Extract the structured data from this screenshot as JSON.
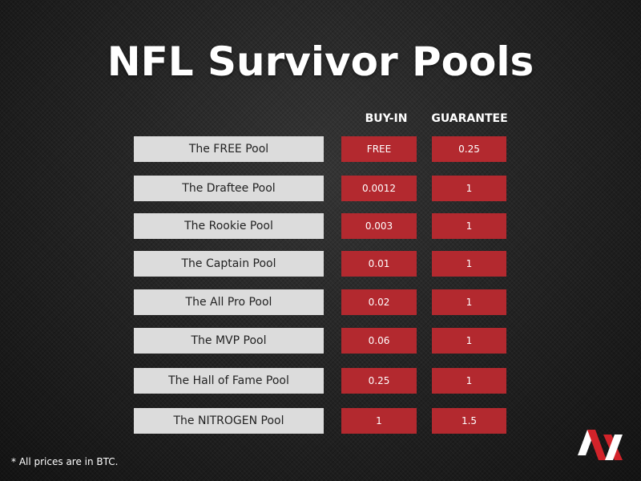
{
  "title": "NFL Survivor Pools",
  "columns": {
    "buyin": "BUY-IN",
    "guarantee": "GUARANTEE"
  },
  "pools": [
    {
      "name": "The FREE Pool",
      "buyin": "FREE",
      "guarantee": "0.25"
    },
    {
      "name": "The Draftee Pool",
      "buyin": "0.0012",
      "guarantee": "1"
    },
    {
      "name": "The Rookie Pool",
      "buyin": "0.003",
      "guarantee": "1"
    },
    {
      "name": "The Captain Pool",
      "buyin": "0.01",
      "guarantee": "1"
    },
    {
      "name": "The All Pro Pool",
      "buyin": "0.02",
      "guarantee": "1"
    },
    {
      "name": "The MVP Pool",
      "buyin": "0.06",
      "guarantee": "1"
    },
    {
      "name": "The Hall of Fame Pool",
      "buyin": "0.25",
      "guarantee": "1"
    },
    {
      "name": "The NITROGEN Pool",
      "buyin": "1",
      "guarantee": "1.5"
    }
  ],
  "footnote": "* All prices are in BTC.",
  "logo": {
    "icon": "nitrogen-logo-icon"
  },
  "colors": {
    "accent": "#b3292f",
    "name_cell": "#dcdcdc",
    "text_light": "#ffffff",
    "background": "#1e1e1e"
  }
}
